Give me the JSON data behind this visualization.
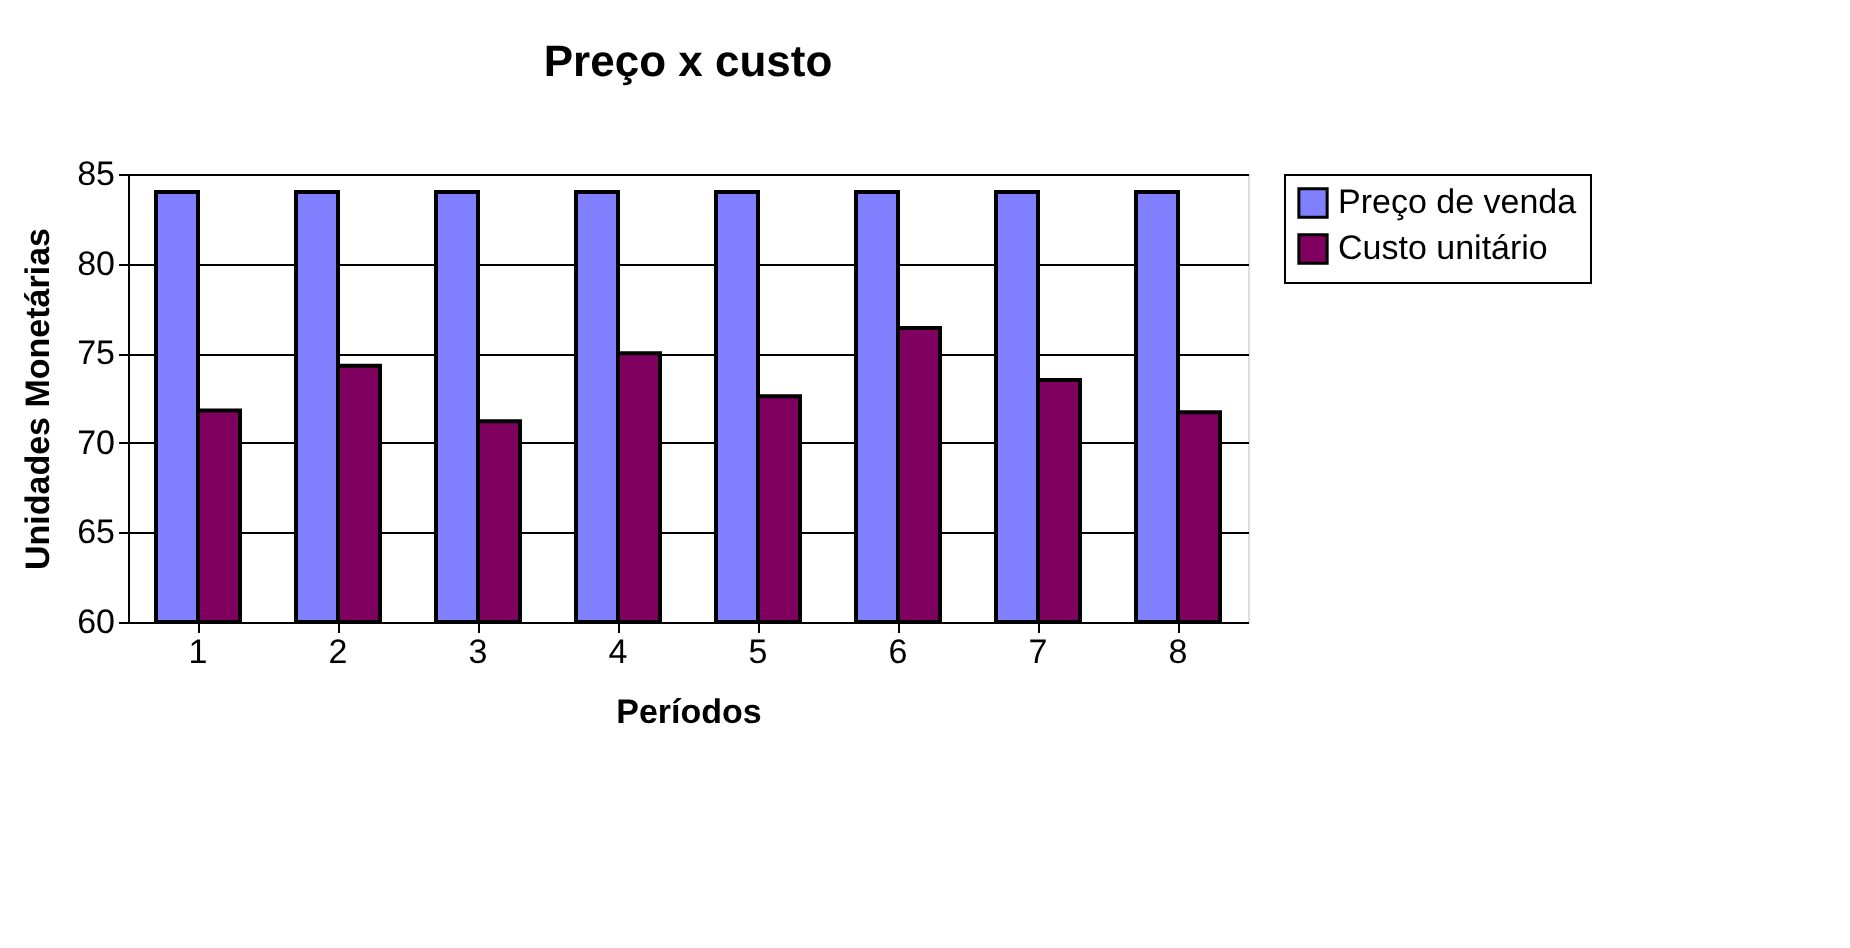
{
  "chart_data": {
    "type": "bar",
    "title": "Preço x custo",
    "xlabel": "Períodos",
    "ylabel": "Unidades Monetárias",
    "categories": [
      "1",
      "2",
      "3",
      "4",
      "5",
      "6",
      "7",
      "8"
    ],
    "series": [
      {
        "name": "Preço de venda",
        "color": "#8080ff",
        "values": [
          84,
          84,
          84,
          84,
          84,
          84,
          84,
          84
        ]
      },
      {
        "name": "Custo unitário",
        "color": "#800060",
        "values": [
          71.8,
          74.3,
          71.2,
          75.0,
          72.6,
          76.4,
          73.5,
          71.7
        ]
      }
    ],
    "ylim": [
      60,
      85
    ],
    "yticks": [
      60,
      65,
      70,
      75,
      80,
      85
    ],
    "grid": "y",
    "legend": "right"
  }
}
